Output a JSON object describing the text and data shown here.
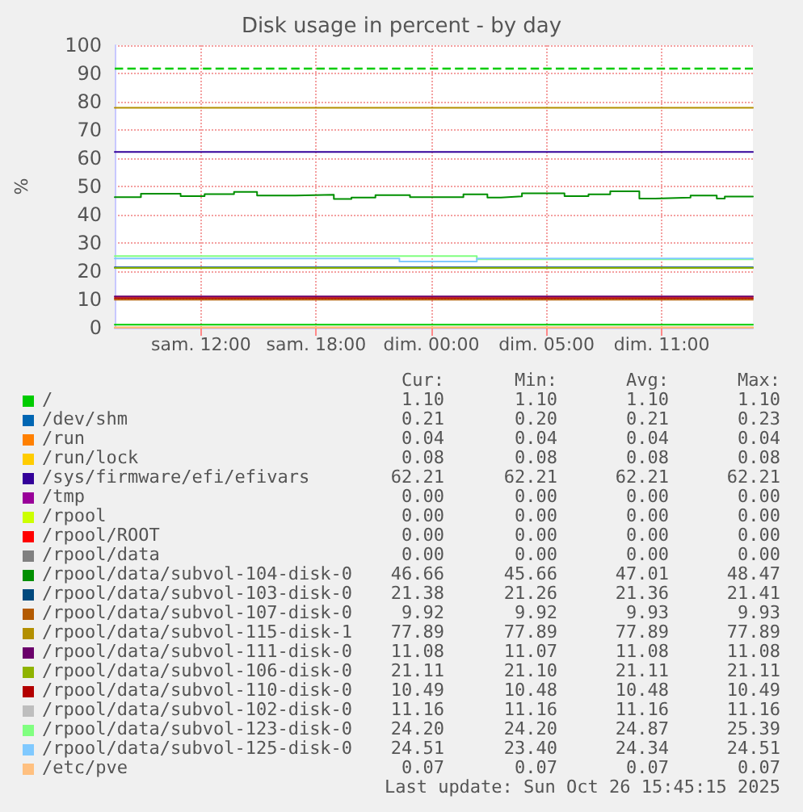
{
  "chart_data": {
    "type": "line",
    "title": "Disk usage in percent - by day",
    "ylabel": "%",
    "xlim": [
      "2025-10-25T05:30",
      "2025-10-26T14:45"
    ],
    "xticks": [
      {
        "value": "2025-10-25T10:00",
        "label": "sam. 12:00"
      },
      {
        "value": "2025-10-25T16:00",
        "label": "sam. 18:00"
      },
      {
        "value": "2025-10-25T22:00",
        "label": "dim. 00:00"
      },
      {
        "value": "2025-10-26T04:00",
        "label": "dim. 05:00"
      },
      {
        "value": "2025-10-26T10:00",
        "label": "dim. 11:00"
      }
    ],
    "ylim": [
      0,
      100
    ],
    "yticks": [
      0,
      10,
      20,
      30,
      40,
      50,
      60,
      70,
      80,
      90,
      100
    ],
    "grid": true,
    "legend": "bottom",
    "marker": "none",
    "line_style": "solid",
    "x": [
      "2025-10-25T05:30",
      "2025-10-26T14:45"
    ],
    "series": [
      {
        "name": "/",
        "color": "#00cc00",
        "values": [
          1.1,
          1.1
        ]
      },
      {
        "name": "/dev/shm",
        "color": "#0066b3",
        "values": [
          null,
          null
        ]
      },
      {
        "name": "/run",
        "color": "#ff8000",
        "values": [
          0.04,
          0.04
        ]
      },
      {
        "name": "/run/lock",
        "color": "#ffcc00",
        "values": [
          null,
          null
        ]
      },
      {
        "name": "/sys/firmware/efi/efivars",
        "color": "#330099",
        "values": [
          62.21,
          62.21
        ]
      },
      {
        "name": "/tmp",
        "color": "#990099",
        "values": [
          null,
          null
        ]
      },
      {
        "name": "/rpool",
        "color": "#ccff00",
        "values": [
          null,
          null
        ]
      },
      {
        "name": "/rpool/ROOT",
        "color": "#ff0000",
        "values": [
          null,
          null
        ]
      },
      {
        "name": "/rpool/data",
        "color": "#808080",
        "values": [
          null,
          null
        ]
      },
      {
        "name": "/rpool/data/subvol-104-disk-0",
        "color": "#008f00",
        "type": "step",
        "x": [
          "2025-10-25T05:30",
          "2025-10-25T06:52",
          "2025-10-25T08:56",
          "2025-10-25T10:11",
          "2025-10-25T11:43",
          "2025-10-25T12:55",
          "2025-10-25T14:55",
          "2025-10-25T16:55",
          "2025-10-25T17:50",
          "2025-10-25T19:05",
          "2025-10-25T20:53",
          "2025-10-25T23:40",
          "2025-10-26T00:55",
          "2025-10-26T01:37",
          "2025-10-26T02:43",
          "2025-10-26T04:56",
          "2025-10-26T06:11",
          "2025-10-26T07:19",
          "2025-10-26T08:50",
          "2025-10-26T09:40",
          "2025-10-26T11:30",
          "2025-10-26T12:52",
          "2025-10-26T13:17",
          "2025-10-26T14:45"
        ],
        "values": [
          46.2,
          47.4,
          46.6,
          47.3,
          48.1,
          46.8,
          47.1,
          45.6,
          46.1,
          46.9,
          46.2,
          47.2,
          46.1,
          46.5,
          47.6,
          46.6,
          47.2,
          48.3,
          45.7,
          46.1,
          46.8,
          45.7,
          46.4,
          46.66
        ]
      },
      {
        "name": "/rpool/data/subvol-103-disk-0",
        "color": "#00487d",
        "values": [
          21.38,
          21.38
        ]
      },
      {
        "name": "/rpool/data/subvol-107-disk-0",
        "color": "#b35a00",
        "values": [
          9.92,
          9.92
        ]
      },
      {
        "name": "/rpool/data/subvol-115-disk-1",
        "color": "#b38f00",
        "values": [
          77.89,
          77.89
        ]
      },
      {
        "name": "/rpool/data/subvol-111-disk-0",
        "color": "#6b006b",
        "values": [
          11.08,
          11.08
        ]
      },
      {
        "name": "/rpool/data/subvol-106-disk-0",
        "color": "#8fb300",
        "values": [
          21.11,
          21.11
        ]
      },
      {
        "name": "/rpool/data/subvol-110-disk-0",
        "color": "#b30000",
        "values": [
          10.49,
          10.49
        ]
      },
      {
        "name": "/rpool/data/subvol-102-disk-0",
        "color": "#bebebe",
        "values": [
          null,
          null
        ]
      },
      {
        "name": "/rpool/data/subvol-123-disk-0",
        "color": "#80ff80",
        "type": "step",
        "x": [
          "2025-10-25T05:30",
          "2025-10-26T00:22",
          "2025-10-26T14:45"
        ],
        "values": [
          25.39,
          24.2,
          24.2
        ]
      },
      {
        "name": "/rpool/data/subvol-125-disk-0",
        "color": "#80c9ff",
        "type": "step",
        "x": [
          "2025-10-25T05:30",
          "2025-10-25T20:20",
          "2025-10-26T00:22",
          "2025-10-26T14:45"
        ],
        "values": [
          24.51,
          23.4,
          24.51,
          24.51
        ]
      },
      {
        "name": "/etc/pve",
        "color": "#ffc080",
        "values": [
          0.07,
          0.07
        ]
      }
    ],
    "ref_lines": [
      {
        "axis": "y",
        "value": 92,
        "color": "#00cc00",
        "line_style": "dashed"
      }
    ],
    "annotations": [
      "Cur:",
      "Min:",
      "Avg:",
      "Max:",
      "1.10",
      "1.10",
      "1.10",
      "1.10",
      "0.21",
      "0.20",
      "0.21",
      "0.23",
      "0.04",
      "0.04",
      "0.04",
      "0.04",
      "0.08",
      "0.08",
      "0.08",
      "0.08",
      "62.21",
      "62.21",
      "62.21",
      "62.21",
      "0.00",
      "0.00",
      "0.00",
      "0.00",
      "0.00",
      "0.00",
      "0.00",
      "0.00",
      "0.00",
      "0.00",
      "0.00",
      "0.00",
      "0.00",
      "0.00",
      "0.00",
      "0.00",
      "46.66",
      "45.66",
      "47.01",
      "48.47",
      "21.38",
      "21.26",
      "21.36",
      "21.41",
      "9.92",
      "9.92",
      "9.93",
      "9.93",
      "77.89",
      "77.89",
      "77.89",
      "77.89",
      "11.08",
      "11.07",
      "11.08",
      "11.08",
      "21.11",
      "21.10",
      "21.11",
      "21.11",
      "10.49",
      "10.48",
      "10.48",
      "10.49",
      "11.16",
      "11.16",
      "11.16",
      "11.16",
      "24.20",
      "24.20",
      "24.87",
      "25.39",
      "24.51",
      "23.40",
      "24.34",
      "24.51",
      "0.07",
      "0.07",
      "0.07",
      "0.07",
      "Last update: Sun Oct 26 15:45:15 2025"
    ]
  }
}
